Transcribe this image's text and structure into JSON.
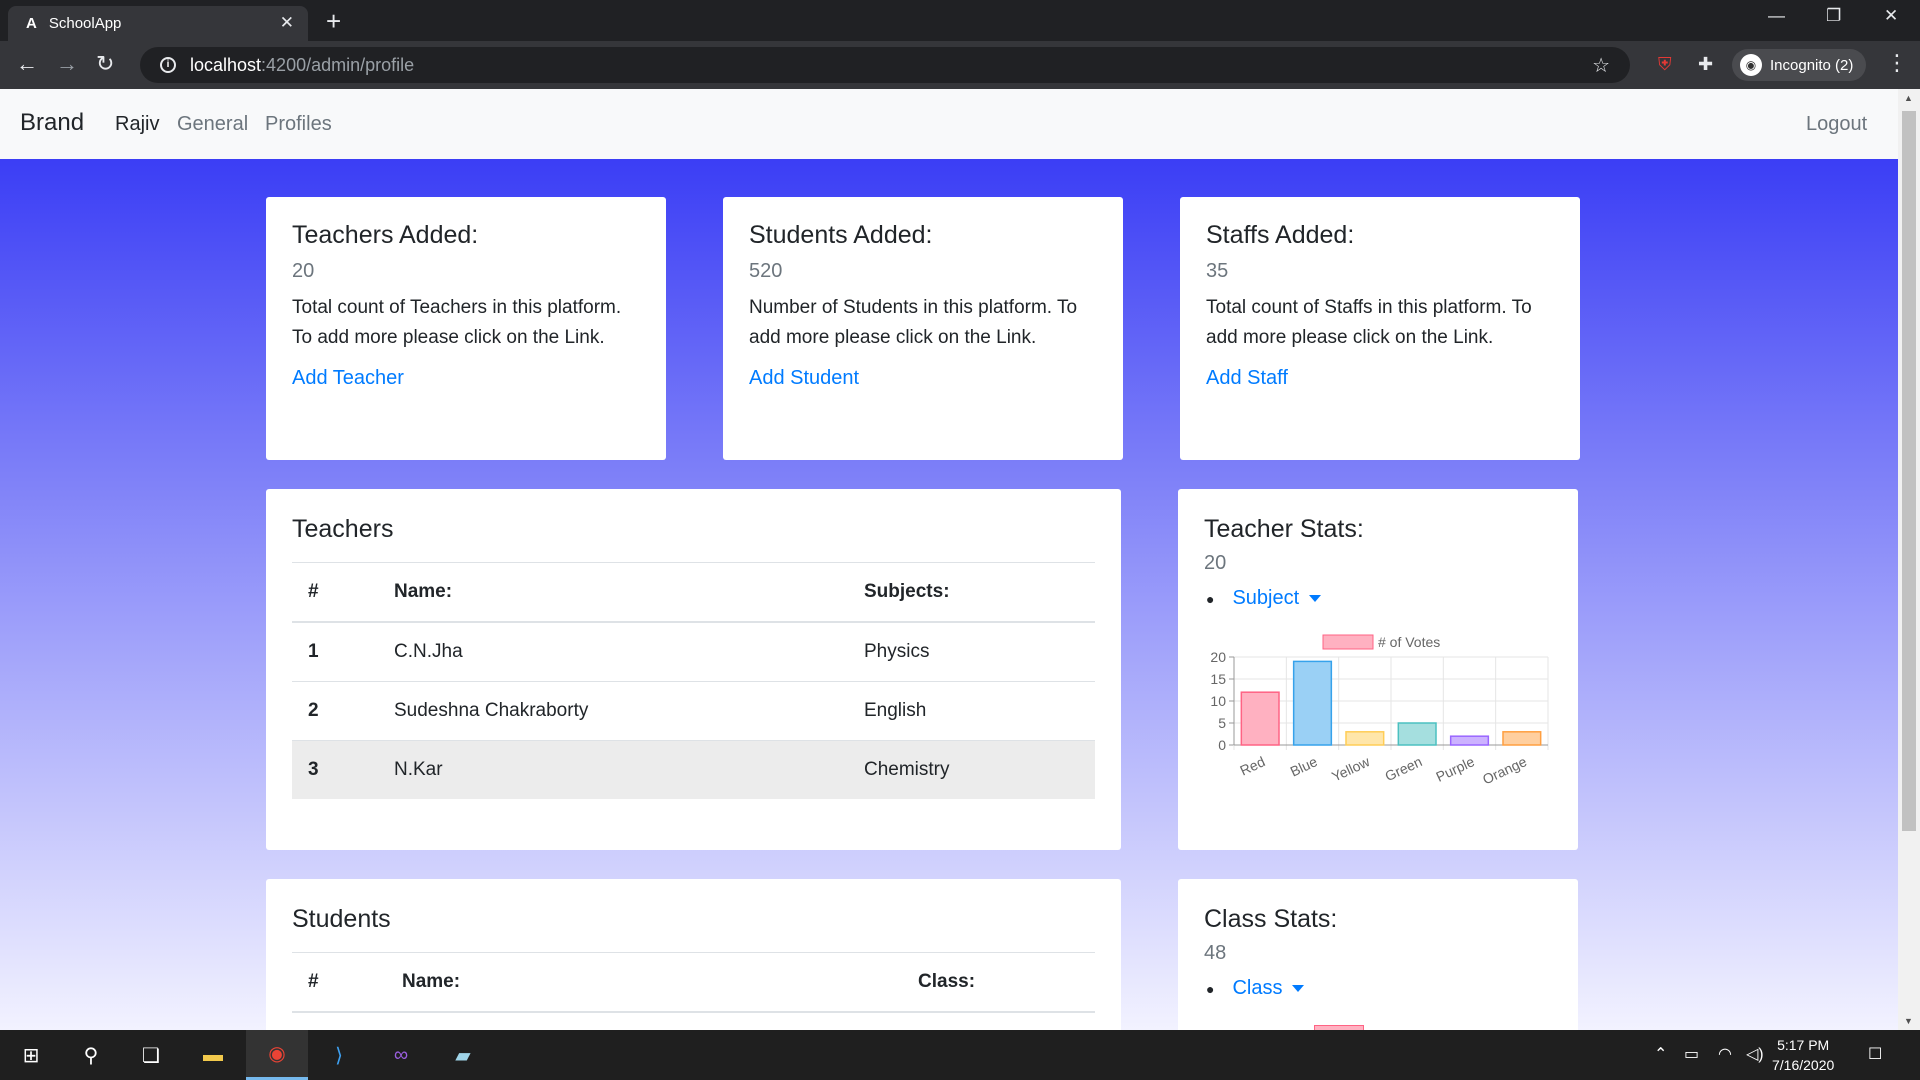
{
  "browser": {
    "tab_title": "SchoolApp",
    "tab_favicon": "A",
    "url_host": "localhost",
    "url_path": ":4200/admin/profile",
    "incognito_label": "Incognito (2)"
  },
  "navbar": {
    "brand": "Brand",
    "links": [
      "Rajiv",
      "General",
      "Profiles"
    ],
    "logout": "Logout"
  },
  "summary_cards": [
    {
      "title": "Teachers Added:",
      "count": "20",
      "desc": "Total count of Teachers in this platform. To add more please click on the Link.",
      "link": "Add Teacher"
    },
    {
      "title": "Students Added:",
      "count": "520",
      "desc": "Number of Students in this platform. To add more please click on the Link.",
      "link": "Add Student"
    },
    {
      "title": "Staffs Added:",
      "count": "35",
      "desc": "Total count of Staffs in this platform. To add more please click on the Link.",
      "link": "Add Staff"
    }
  ],
  "teachers": {
    "title": "Teachers",
    "headers": [
      "#",
      "Name:",
      "Subjects:"
    ],
    "rows": [
      {
        "num": "1",
        "name": "C.N.Jha",
        "subject": "Physics"
      },
      {
        "num": "2",
        "name": "Sudeshna Chakraborty",
        "subject": "English"
      },
      {
        "num": "3",
        "name": "N.Kar",
        "subject": "Chemistry"
      }
    ]
  },
  "students": {
    "title": "Students",
    "headers": [
      "#",
      "Name:",
      "Class:"
    ]
  },
  "teacher_stats": {
    "title": "Teacher Stats:",
    "count": "20",
    "dropdown": "Subject"
  },
  "class_stats": {
    "title": "Class Stats:",
    "count": "48",
    "dropdown": "Class"
  },
  "chart_data": {
    "type": "bar",
    "categories": [
      "Red",
      "Blue",
      "Yellow",
      "Green",
      "Purple",
      "Orange"
    ],
    "series": [
      {
        "name": "# of Votes",
        "values": [
          12,
          19,
          3,
          5,
          2,
          3
        ]
      }
    ],
    "ylim": [
      0,
      20
    ],
    "yticks": [
      0,
      5,
      10,
      15,
      20
    ],
    "legend": "top",
    "grid": true,
    "fill_colors": [
      "#ffb1c1",
      "#9ad0f5",
      "#ffe6aa",
      "#a5dfdf",
      "#ccb2ff",
      "#ffcf9f"
    ],
    "stroke_colors": [
      "#ff6384",
      "#36a2eb",
      "#ffcd56",
      "#4bc0c0",
      "#9966ff",
      "#ff9f40"
    ]
  },
  "taskbar": {
    "time": "5:17 PM",
    "date": "7/16/2020"
  }
}
